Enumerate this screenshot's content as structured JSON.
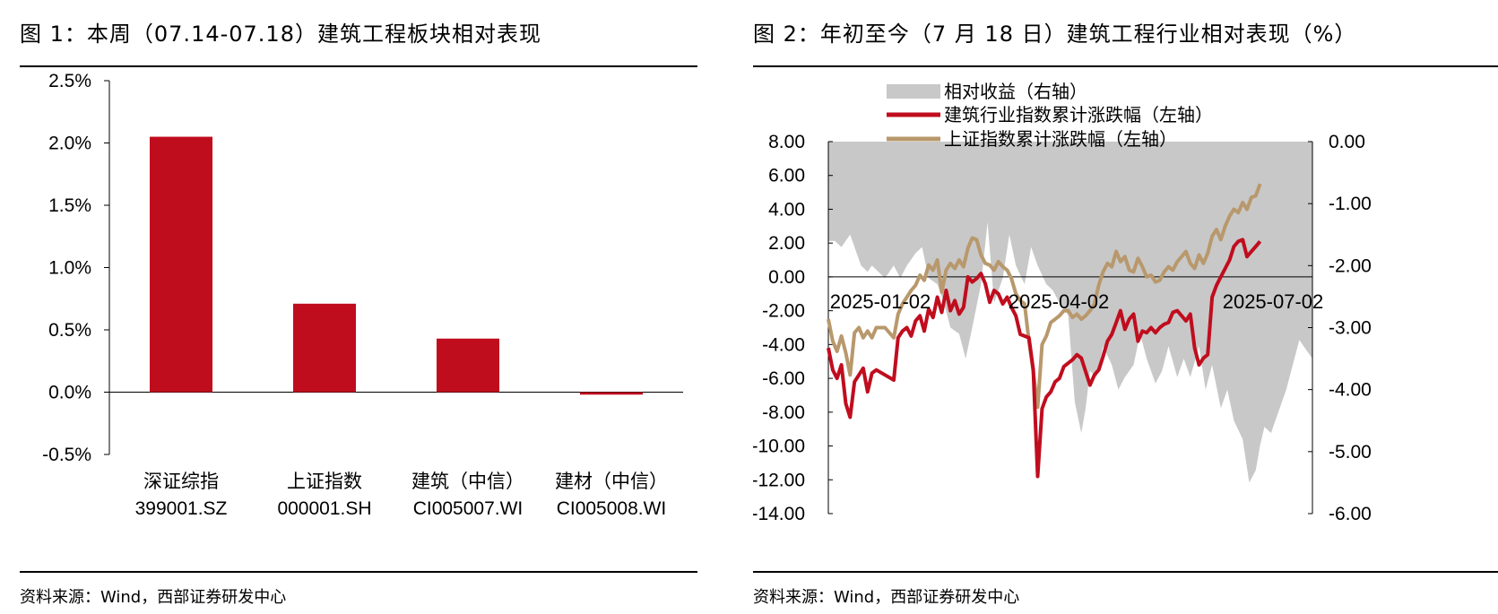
{
  "figure1": {
    "title": "图 1：本周（07.14-07.18）建筑工程板块相对表现",
    "source": "资料来源：Wind，西部证券研发中心",
    "chart_data": {
      "type": "bar",
      "categories": [
        {
          "name": "深证综指",
          "code": "399001.SZ"
        },
        {
          "name": "上证指数",
          "code": "000001.SH"
        },
        {
          "name": "建筑（中信）",
          "code": "CI005007.WI"
        },
        {
          "name": "建材（中信）",
          "code": "CI005008.WI"
        }
      ],
      "values": [
        2.05,
        0.71,
        0.43,
        -0.02
      ],
      "unit": "%",
      "ylim": [
        -0.5,
        2.5
      ],
      "yticks": [
        "2.5%",
        "2.0%",
        "1.5%",
        "1.0%",
        "0.5%",
        "0.0%",
        "-0.5%"
      ],
      "bar_color": "#c00d1e",
      "grid": false
    }
  },
  "figure2": {
    "title": "图 2：年初至今（7 月 18 日）建筑工程行业相对表现（%）",
    "source": "资料来源：Wind，西部证券研发中心",
    "chart_data": {
      "type": "line",
      "legend_position": "top",
      "x_tick_labels": [
        "2025-01-02",
        "2025-04-02",
        "2025-07-02"
      ],
      "left_axis": {
        "ylim": [
          -14,
          8
        ],
        "ticks": [
          "8.00",
          "6.00",
          "4.00",
          "2.00",
          "0.00",
          "-2.00",
          "-4.00",
          "-6.00",
          "-8.00",
          "-10.00",
          "-12.00",
          "-14.00"
        ]
      },
      "right_axis": {
        "ylim": [
          -6,
          0
        ],
        "ticks": [
          "0.00",
          "-1.00",
          "-2.00",
          "-3.00",
          "-4.00",
          "-5.00",
          "-6.00"
        ]
      },
      "series": [
        {
          "name": "相对收益（右轴）",
          "type": "area",
          "axis": "right",
          "color": "#c8c8c8",
          "points": [
            [
              0,
              -1.6
            ],
            [
              3,
              -1.6
            ],
            [
              6,
              -1.7
            ],
            [
              10,
              -1.5
            ],
            [
              15,
              -2.0
            ],
            [
              18,
              -2.1
            ],
            [
              20,
              -2.0
            ],
            [
              23,
              -2.1
            ],
            [
              26,
              -2.2
            ],
            [
              30,
              -2.0
            ],
            [
              33,
              -2.2
            ],
            [
              36,
              -2.0
            ],
            [
              40,
              -1.8
            ],
            [
              43,
              -1.7
            ],
            [
              46,
              -2.2
            ],
            [
              50,
              -2.3
            ],
            [
              53,
              -2.6
            ],
            [
              56,
              -3.0
            ],
            [
              60,
              -3.1
            ],
            [
              63,
              -3.5
            ],
            [
              66,
              -3.0
            ],
            [
              70,
              -2.3
            ],
            [
              73,
              -1.3
            ],
            [
              76,
              -2.6
            ],
            [
              80,
              -2.2
            ],
            [
              83,
              -1.5
            ],
            [
              86,
              -2.0
            ],
            [
              90,
              -2.3
            ],
            [
              93,
              -1.7
            ],
            [
              96,
              -2.0
            ],
            [
              100,
              -2.3
            ],
            [
              103,
              -2.4
            ],
            [
              106,
              -2.6
            ],
            [
              110,
              -2.8
            ],
            [
              113,
              -4.2
            ],
            [
              116,
              -4.7
            ],
            [
              118,
              -4.3
            ],
            [
              120,
              -3.7
            ],
            [
              123,
              -3.8
            ],
            [
              126,
              -3.3
            ],
            [
              130,
              -3.6
            ],
            [
              133,
              -4.0
            ],
            [
              136,
              -3.8
            ],
            [
              140,
              -3.6
            ],
            [
              143,
              -3.1
            ],
            [
              146,
              -3.5
            ],
            [
              150,
              -3.9
            ],
            [
              153,
              -3.7
            ],
            [
              156,
              -3.3
            ],
            [
              160,
              -3.8
            ],
            [
              163,
              -3.5
            ],
            [
              166,
              -3.8
            ],
            [
              170,
              -3.3
            ],
            [
              173,
              -4.0
            ],
            [
              176,
              -3.6
            ],
            [
              180,
              -4.3
            ],
            [
              183,
              -4.0
            ],
            [
              186,
              -4.5
            ],
            [
              190,
              -4.8
            ],
            [
              193,
              -5.5
            ],
            [
              196,
              -5.3
            ],
            [
              198,
              -4.9
            ],
            [
              200,
              -4.6
            ],
            [
              203,
              -4.7
            ],
            [
              206,
              -4.4
            ],
            [
              210,
              -4.0
            ],
            [
              213,
              -3.6
            ],
            [
              216,
              -3.2
            ],
            [
              220,
              -3.4
            ],
            [
              222,
              -3.5
            ]
          ]
        },
        {
          "name": "建筑行业指数累计涨跌幅（左轴）",
          "type": "line",
          "axis": "left",
          "color": "#c00d1e",
          "points": [
            [
              0,
              -4.2
            ],
            [
              2,
              -5.5
            ],
            [
              4,
              -6.0
            ],
            [
              6,
              -5.2
            ],
            [
              8,
              -7.5
            ],
            [
              10,
              -8.3
            ],
            [
              12,
              -6.2
            ],
            [
              14,
              -5.8
            ],
            [
              16,
              -5.4
            ],
            [
              18,
              -6.8
            ],
            [
              20,
              -5.7
            ],
            [
              22,
              -5.5
            ],
            [
              26,
              -5.8
            ],
            [
              30,
              -6.1
            ],
            [
              32,
              -3.6
            ],
            [
              34,
              -3.2
            ],
            [
              36,
              -3.0
            ],
            [
              38,
              -3.5
            ],
            [
              40,
              -2.6
            ],
            [
              42,
              -2.3
            ],
            [
              44,
              -3.2
            ],
            [
              46,
              -1.9
            ],
            [
              48,
              -2.4
            ],
            [
              50,
              -1.2
            ],
            [
              52,
              -2.1
            ],
            [
              54,
              -0.8
            ],
            [
              56,
              -2.0
            ],
            [
              58,
              -1.4
            ],
            [
              60,
              -2.2
            ],
            [
              62,
              -1.8
            ],
            [
              64,
              0.0
            ],
            [
              66,
              -0.3
            ],
            [
              68,
              -0.1
            ],
            [
              70,
              0.2
            ],
            [
              72,
              -0.4
            ],
            [
              74,
              -1.5
            ],
            [
              76,
              -0.8
            ],
            [
              78,
              -1.0
            ],
            [
              80,
              -1.6
            ],
            [
              82,
              -1.2
            ],
            [
              84,
              -1.8
            ],
            [
              86,
              -2.3
            ],
            [
              88,
              -3.4
            ],
            [
              90,
              -3.5
            ],
            [
              92,
              -3.6
            ],
            [
              94,
              -5.5
            ],
            [
              96,
              -11.8
            ],
            [
              98,
              -7.8
            ],
            [
              100,
              -7.1
            ],
            [
              102,
              -6.8
            ],
            [
              104,
              -6.2
            ],
            [
              106,
              -6.0
            ],
            [
              108,
              -5.3
            ],
            [
              110,
              -5.1
            ],
            [
              112,
              -4.9
            ],
            [
              114,
              -4.6
            ],
            [
              116,
              -4.8
            ],
            [
              118,
              -5.6
            ],
            [
              120,
              -6.4
            ],
            [
              122,
              -5.8
            ],
            [
              124,
              -5.5
            ],
            [
              126,
              -4.7
            ],
            [
              128,
              -3.8
            ],
            [
              130,
              -3.4
            ],
            [
              132,
              -2.7
            ],
            [
              134,
              -2.0
            ],
            [
              136,
              -3.1
            ],
            [
              138,
              -2.5
            ],
            [
              140,
              -2.2
            ],
            [
              142,
              -3.8
            ],
            [
              144,
              -3.2
            ],
            [
              146,
              -3.3
            ],
            [
              148,
              -3.0
            ],
            [
              150,
              -3.3
            ],
            [
              152,
              -3.0
            ],
            [
              154,
              -2.8
            ],
            [
              156,
              -2.7
            ],
            [
              158,
              -2.1
            ],
            [
              160,
              -2.0
            ],
            [
              162,
              -2.3
            ],
            [
              164,
              -2.6
            ],
            [
              166,
              -2.2
            ],
            [
              168,
              -4.2
            ],
            [
              170,
              -5.2
            ],
            [
              172,
              -4.8
            ],
            [
              174,
              -4.6
            ],
            [
              176,
              -1.2
            ],
            [
              178,
              -0.5
            ],
            [
              180,
              0.0
            ],
            [
              182,
              0.5
            ],
            [
              184,
              1.0
            ],
            [
              186,
              1.8
            ],
            [
              188,
              2.1
            ],
            [
              190,
              2.2
            ],
            [
              192,
              1.2
            ],
            [
              194,
              1.5
            ],
            [
              196,
              1.8
            ],
            [
              198,
              2.1
            ]
          ]
        },
        {
          "name": "上证指数累计涨跌幅（左轴）",
          "type": "line",
          "axis": "left",
          "color": "#b8986c",
          "points": [
            [
              0,
              -2.5
            ],
            [
              2,
              -3.8
            ],
            [
              4,
              -4.4
            ],
            [
              6,
              -3.5
            ],
            [
              8,
              -4.5
            ],
            [
              10,
              -5.8
            ],
            [
              12,
              -3.3
            ],
            [
              14,
              -3.0
            ],
            [
              16,
              -3.6
            ],
            [
              18,
              -3.2
            ],
            [
              20,
              -3.6
            ],
            [
              22,
              -3.0
            ],
            [
              26,
              -3.0
            ],
            [
              30,
              -3.6
            ],
            [
              32,
              -2.2
            ],
            [
              34,
              -1.6
            ],
            [
              36,
              -1.2
            ],
            [
              38,
              -0.8
            ],
            [
              40,
              -0.5
            ],
            [
              42,
              0.1
            ],
            [
              44,
              -0.2
            ],
            [
              46,
              0.7
            ],
            [
              48,
              0.4
            ],
            [
              50,
              1.0
            ],
            [
              52,
              -0.9
            ],
            [
              54,
              0.4
            ],
            [
              56,
              0.8
            ],
            [
              58,
              0.5
            ],
            [
              60,
              1.0
            ],
            [
              62,
              0.6
            ],
            [
              64,
              1.7
            ],
            [
              66,
              2.3
            ],
            [
              68,
              2.2
            ],
            [
              70,
              1.3
            ],
            [
              72,
              0.8
            ],
            [
              74,
              0.7
            ],
            [
              76,
              0.4
            ],
            [
              78,
              0.9
            ],
            [
              80,
              0.6
            ],
            [
              82,
              0.4
            ],
            [
              84,
              -0.1
            ],
            [
              86,
              -1.0
            ],
            [
              88,
              -1.4
            ],
            [
              90,
              -1.6
            ],
            [
              92,
              -3.8
            ],
            [
              94,
              -5.6
            ],
            [
              96,
              -7.7
            ],
            [
              98,
              -4.0
            ],
            [
              100,
              -3.5
            ],
            [
              102,
              -2.7
            ],
            [
              104,
              -2.5
            ],
            [
              106,
              -2.3
            ],
            [
              108,
              -2.0
            ],
            [
              110,
              -2.0
            ],
            [
              112,
              -2.4
            ],
            [
              114,
              -2.2
            ],
            [
              116,
              -2.5
            ],
            [
              118,
              -2.3
            ],
            [
              120,
              -2.0
            ],
            [
              122,
              -1.6
            ],
            [
              124,
              -0.5
            ],
            [
              126,
              0.3
            ],
            [
              128,
              0.8
            ],
            [
              130,
              0.6
            ],
            [
              132,
              1.5
            ],
            [
              134,
              0.9
            ],
            [
              136,
              1.2
            ],
            [
              138,
              0.4
            ],
            [
              140,
              0.3
            ],
            [
              142,
              1.1
            ],
            [
              144,
              0.6
            ],
            [
              146,
              0.0
            ],
            [
              148,
              0.1
            ],
            [
              150,
              -0.3
            ],
            [
              152,
              -0.2
            ],
            [
              154,
              0.3
            ],
            [
              156,
              0.6
            ],
            [
              158,
              0.4
            ],
            [
              160,
              0.9
            ],
            [
              162,
              1.2
            ],
            [
              164,
              1.5
            ],
            [
              166,
              0.8
            ],
            [
              168,
              0.5
            ],
            [
              170,
              1.3
            ],
            [
              172,
              0.8
            ],
            [
              174,
              1.4
            ],
            [
              176,
              2.4
            ],
            [
              178,
              2.8
            ],
            [
              180,
              2.2
            ],
            [
              182,
              3.0
            ],
            [
              184,
              3.6
            ],
            [
              186,
              4.0
            ],
            [
              188,
              3.8
            ],
            [
              190,
              4.4
            ],
            [
              192,
              4.0
            ],
            [
              194,
              4.7
            ],
            [
              196,
              4.8
            ],
            [
              198,
              5.5
            ]
          ]
        }
      ]
    }
  }
}
